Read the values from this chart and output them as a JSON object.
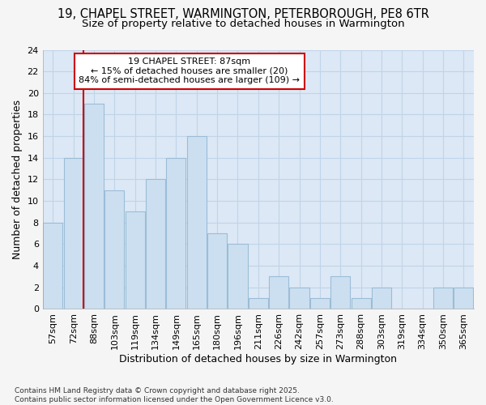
{
  "title_line1": "19, CHAPEL STREET, WARMINGTON, PETERBOROUGH, PE8 6TR",
  "title_line2": "Size of property relative to detached houses in Warmington",
  "xlabel": "Distribution of detached houses by size in Warmington",
  "ylabel": "Number of detached properties",
  "footnote": "Contains HM Land Registry data © Crown copyright and database right 2025.\nContains public sector information licensed under the Open Government Licence v3.0.",
  "categories": [
    "57sqm",
    "72sqm",
    "88sqm",
    "103sqm",
    "119sqm",
    "134sqm",
    "149sqm",
    "165sqm",
    "180sqm",
    "196sqm",
    "211sqm",
    "226sqm",
    "242sqm",
    "257sqm",
    "273sqm",
    "288sqm",
    "303sqm",
    "319sqm",
    "334sqm",
    "350sqm",
    "365sqm"
  ],
  "values": [
    8,
    14,
    19,
    11,
    9,
    12,
    14,
    16,
    7,
    6,
    1,
    3,
    2,
    1,
    3,
    1,
    2,
    0,
    0,
    2,
    2
  ],
  "bar_color": "#ccdff0",
  "bar_edge_color": "#9bbdd6",
  "subject_bar_index": 2,
  "subject_label": "19 CHAPEL STREET: 87sqm",
  "annotation_line1": "← 15% of detached houses are smaller (20)",
  "annotation_line2": "84% of semi-detached houses are larger (109) →",
  "annotation_box_color": "#ffffff",
  "annotation_box_edge": "#cc0000",
  "subject_line_color": "#cc0000",
  "ylim": [
    0,
    24
  ],
  "yticks": [
    0,
    2,
    4,
    6,
    8,
    10,
    12,
    14,
    16,
    18,
    20,
    22,
    24
  ],
  "background_color": "#dce8f5",
  "grid_color": "#c0d4e8",
  "figure_bg": "#f5f5f5",
  "title_fontsize": 10.5,
  "subtitle_fontsize": 9.5,
  "axis_label_fontsize": 9,
  "tick_fontsize": 8,
  "annot_fontsize": 8
}
